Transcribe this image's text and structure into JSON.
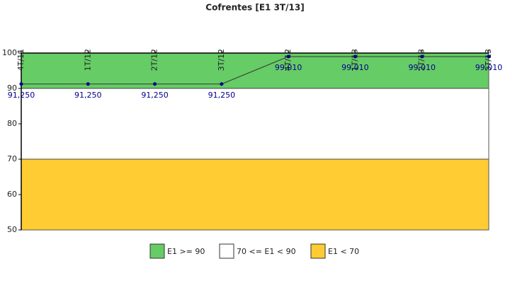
{
  "chart_data": {
    "type": "line",
    "title": "Cofrentes [E1 3T/13]",
    "categories": [
      "4T/11",
      "1T/12",
      "2T/12",
      "3T/12",
      "4T/12",
      "1T/13",
      "2T/13",
      "3T/13"
    ],
    "series": [
      {
        "name": "E1",
        "color": "#00008b",
        "values": [
          91.25,
          91.25,
          91.25,
          91.25,
          99.01,
          99.01,
          99.01,
          99.01
        ],
        "value_labels": [
          "91,250",
          "91,250",
          "91,250",
          "91,250",
          "99,010",
          "99,010",
          "99,010",
          "99,010"
        ]
      }
    ],
    "ylim": [
      50,
      100
    ],
    "yticks": [
      50,
      60,
      70,
      80,
      90,
      100
    ],
    "bands": [
      {
        "name": "E1 >= 90",
        "color": "#66cc66",
        "from": 90,
        "to": 100
      },
      {
        "name": "70 <= E1 < 90",
        "color": "#ffffff",
        "from": 70,
        "to": 90
      },
      {
        "name": "E1 < 70",
        "color": "#ffcc33",
        "from": 50,
        "to": 70
      }
    ],
    "legend": "bottom"
  }
}
